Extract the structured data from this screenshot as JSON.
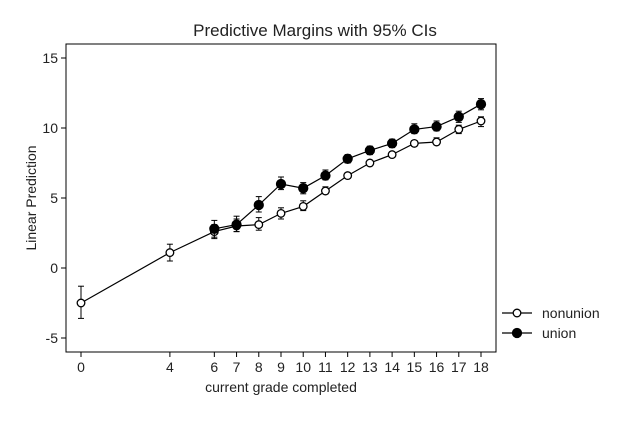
{
  "chart_data": {
    "type": "line",
    "title": "Predictive Margins with 95% CIs",
    "xlabel": "current grade completed",
    "ylabel": "Linear Prediction",
    "xlim": [
      0,
      18
    ],
    "ylim": [
      -6,
      16
    ],
    "x_ticks": [
      0,
      4,
      6,
      7,
      8,
      9,
      10,
      11,
      12,
      13,
      14,
      15,
      16,
      17,
      18
    ],
    "y_ticks": [
      -5,
      0,
      5,
      10,
      15
    ],
    "grid": false,
    "legend_position": "right",
    "series": [
      {
        "name": "nonunion",
        "marker": "hollow-circle",
        "color": "#000000",
        "points": [
          {
            "x": 0,
            "y": -2.5,
            "lo": -3.6,
            "hi": -1.3
          },
          {
            "x": 4,
            "y": 1.1,
            "lo": 0.5,
            "hi": 1.7
          },
          {
            "x": 6,
            "y": 2.6,
            "lo": 2.1,
            "hi": 3.1
          },
          {
            "x": 7,
            "y": 3.0,
            "lo": 2.6,
            "hi": 3.5
          },
          {
            "x": 8,
            "y": 3.1,
            "lo": 2.7,
            "hi": 3.6
          },
          {
            "x": 9,
            "y": 3.9,
            "lo": 3.5,
            "hi": 4.3
          },
          {
            "x": 10,
            "y": 4.4,
            "lo": 4.1,
            "hi": 4.8
          },
          {
            "x": 11,
            "y": 5.5,
            "lo": 5.3,
            "hi": 5.8
          },
          {
            "x": 12,
            "y": 6.6,
            "lo": 6.4,
            "hi": 6.8
          },
          {
            "x": 13,
            "y": 7.5,
            "lo": 7.3,
            "hi": 7.7
          },
          {
            "x": 14,
            "y": 8.1,
            "lo": 7.9,
            "hi": 8.3
          },
          {
            "x": 15,
            "y": 8.9,
            "lo": 8.7,
            "hi": 9.1
          },
          {
            "x": 16,
            "y": 9.0,
            "lo": 8.8,
            "hi": 9.3
          },
          {
            "x": 17,
            "y": 9.9,
            "lo": 9.6,
            "hi": 10.2
          },
          {
            "x": 18,
            "y": 10.5,
            "lo": 10.1,
            "hi": 10.8
          }
        ]
      },
      {
        "name": "union",
        "marker": "filled-circle",
        "color": "#000000",
        "points": [
          {
            "x": 6,
            "y": 2.8,
            "lo": 2.2,
            "hi": 3.4
          },
          {
            "x": 7,
            "y": 3.1,
            "lo": 2.6,
            "hi": 3.7
          },
          {
            "x": 8,
            "y": 4.5,
            "lo": 4.0,
            "hi": 5.1
          },
          {
            "x": 9,
            "y": 6.0,
            "lo": 5.6,
            "hi": 6.5
          },
          {
            "x": 10,
            "y": 5.7,
            "lo": 5.3,
            "hi": 6.1
          },
          {
            "x": 11,
            "y": 6.6,
            "lo": 6.3,
            "hi": 7.0
          },
          {
            "x": 12,
            "y": 7.8,
            "lo": 7.5,
            "hi": 8.1
          },
          {
            "x": 13,
            "y": 8.4,
            "lo": 8.1,
            "hi": 8.7
          },
          {
            "x": 14,
            "y": 8.9,
            "lo": 8.6,
            "hi": 9.2
          },
          {
            "x": 15,
            "y": 9.9,
            "lo": 9.6,
            "hi": 10.3
          },
          {
            "x": 16,
            "y": 10.1,
            "lo": 9.8,
            "hi": 10.5
          },
          {
            "x": 17,
            "y": 10.8,
            "lo": 10.4,
            "hi": 11.2
          },
          {
            "x": 18,
            "y": 11.7,
            "lo": 11.3,
            "hi": 12.1
          }
        ]
      }
    ]
  }
}
